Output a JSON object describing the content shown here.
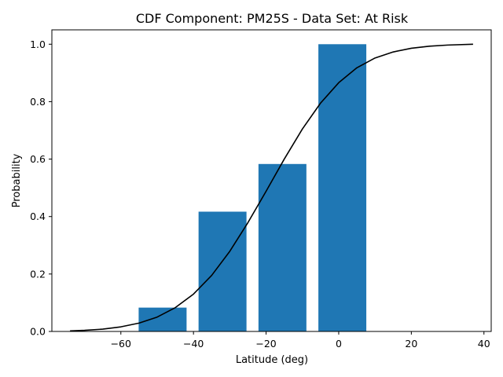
{
  "chart_data": {
    "type": "bar",
    "title": "CDF Component: PM25S - Data Set: At Risk",
    "xlabel": "Latitude (deg)",
    "ylabel": "Probability",
    "xlim": [
      -79,
      42
    ],
    "ylim": [
      0,
      1.05
    ],
    "xticks": [
      -60,
      -40,
      -20,
      0,
      20,
      40
    ],
    "yticks": [
      0.0,
      0.2,
      0.4,
      0.6,
      0.8,
      1.0
    ],
    "xtick_labels": [
      "−60",
      "−40",
      "−20",
      "0",
      "20",
      "40"
    ],
    "ytick_labels": [
      "0.0",
      "0.2",
      "0.4",
      "0.6",
      "0.8",
      "1.0"
    ],
    "grid": false,
    "bar_color": "#1f77b4",
    "line_color": "#000000",
    "bars": [
      {
        "x": -48.5,
        "width": 13.2,
        "value": 0.083
      },
      {
        "x": -32.0,
        "width": 13.2,
        "value": 0.417
      },
      {
        "x": -15.5,
        "width": 13.2,
        "value": 0.583
      },
      {
        "x": 1.0,
        "width": 13.2,
        "value": 1.0
      }
    ],
    "cdf_line": {
      "x": [
        -74,
        -70,
        -65,
        -60,
        -55,
        -50,
        -45,
        -40,
        -35,
        -30,
        -25,
        -20,
        -15,
        -10,
        -5,
        0,
        5,
        10,
        15,
        20,
        25,
        30,
        37
      ],
      "y": [
        0.002,
        0.004,
        0.008,
        0.016,
        0.029,
        0.05,
        0.083,
        0.13,
        0.195,
        0.279,
        0.379,
        0.488,
        0.6,
        0.705,
        0.795,
        0.866,
        0.918,
        0.952,
        0.973,
        0.986,
        0.993,
        0.997,
        1.0
      ]
    }
  }
}
